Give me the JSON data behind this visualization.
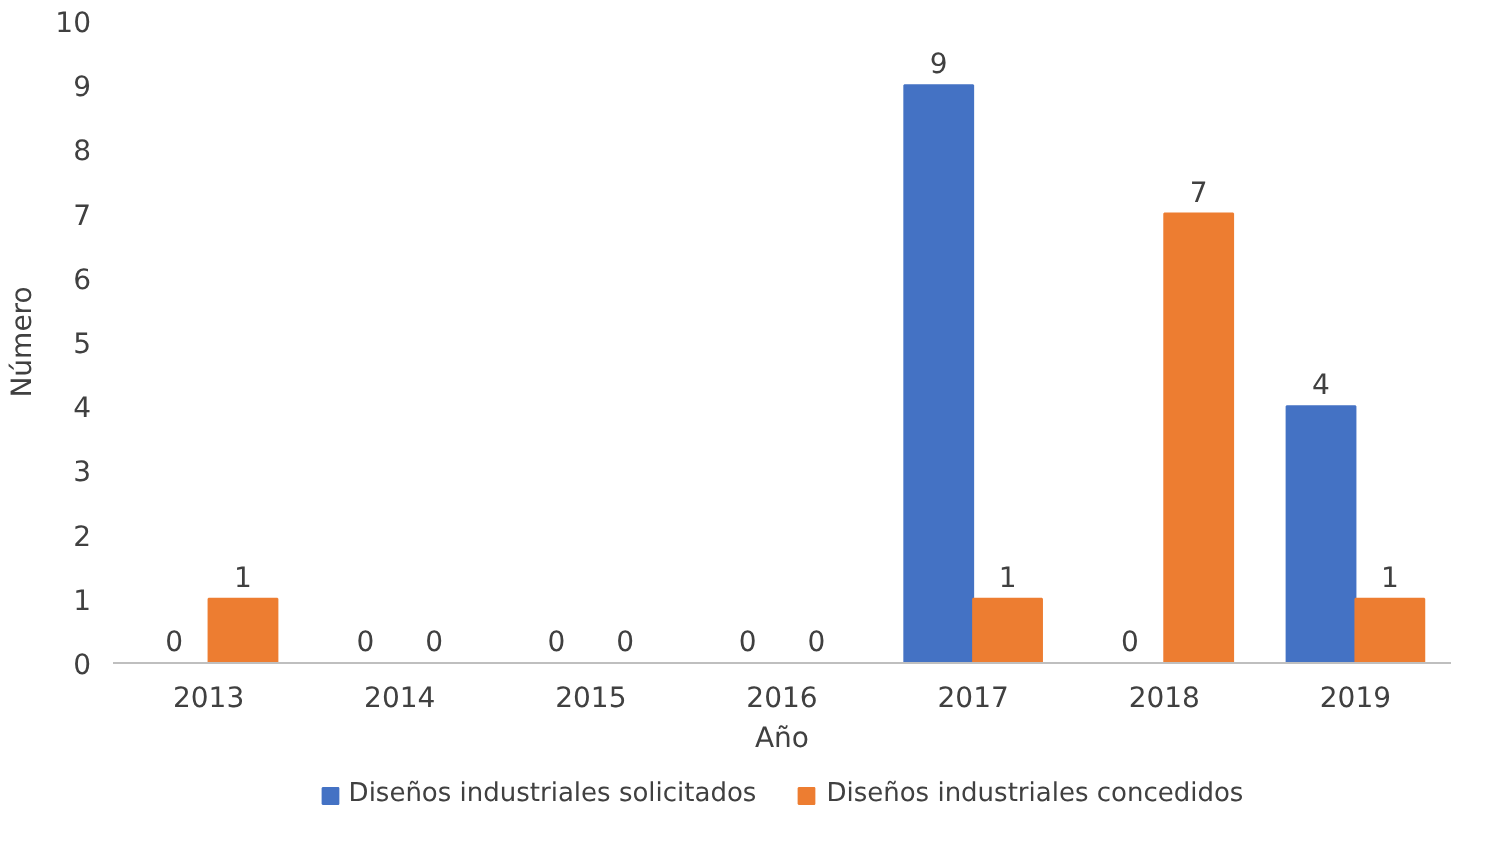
{
  "chart_data": {
    "type": "bar",
    "xlabel": "Año",
    "ylabel": "Número",
    "categories": [
      "2013",
      "2014",
      "2015",
      "2016",
      "2017",
      "2018",
      "2019"
    ],
    "series": [
      {
        "name": "Diseños industriales solicitados",
        "color": "#4472c4",
        "values": [
          0,
          0,
          0,
          0,
          9,
          0,
          4
        ]
      },
      {
        "name": "Diseños industriales concedidos",
        "color": "#ed7d31",
        "values": [
          1,
          0,
          0,
          0,
          1,
          7,
          1
        ]
      }
    ],
    "ylim": [
      0,
      10
    ],
    "yticks": [
      0,
      1,
      2,
      3,
      4,
      5,
      6,
      7,
      8,
      9,
      10
    ],
    "grid": false,
    "legend": "bottom",
    "data_labels": true
  }
}
